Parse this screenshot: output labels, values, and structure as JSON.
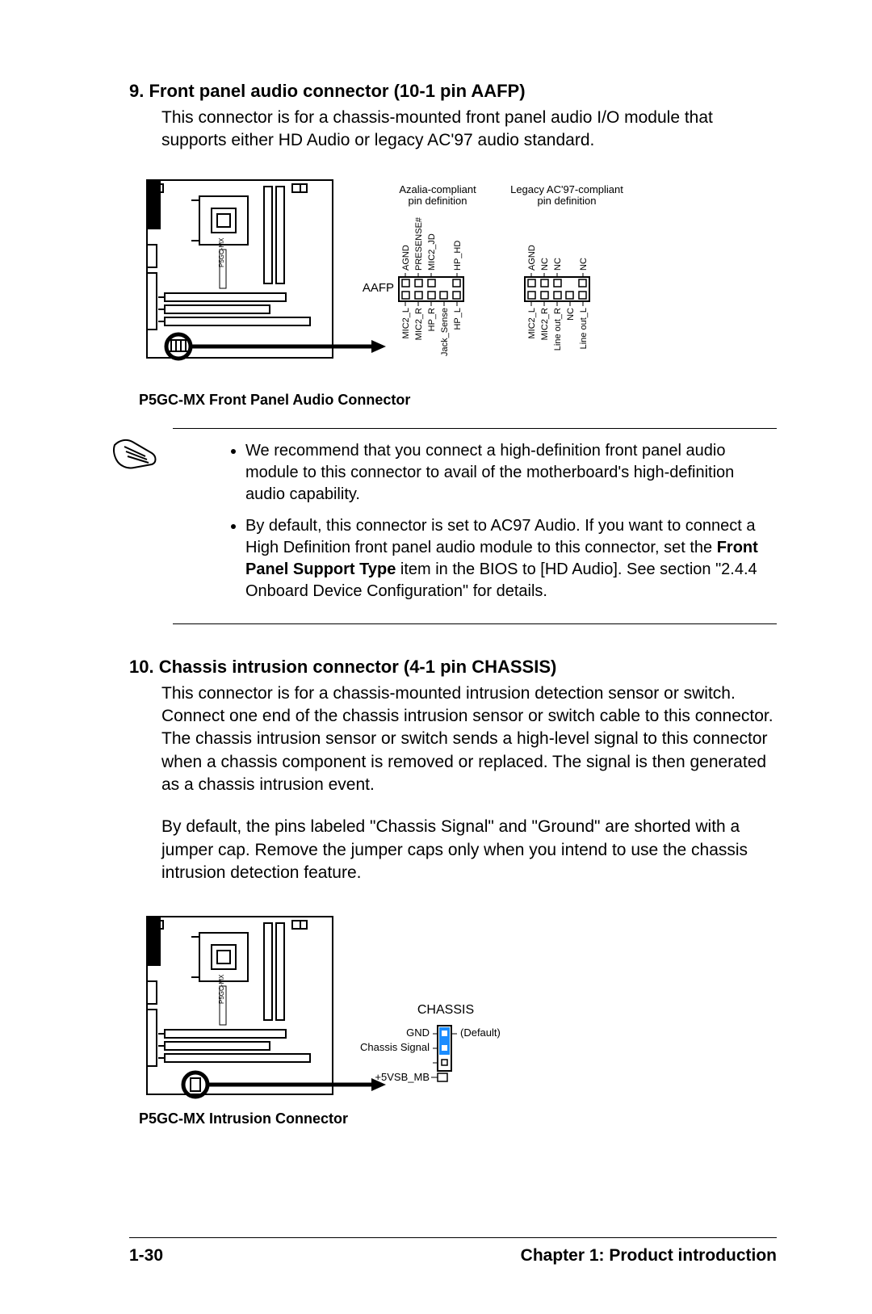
{
  "section9": {
    "heading": "9.  Front panel audio connector (10-1 pin AAFP)",
    "body": "This connector is for a chassis-mounted front panel audio I/O module that supports either HD Audio or legacy AC'97 audio standard.",
    "diagram": {
      "caption": "P5GC-MX Front Panel Audio Connector",
      "board_label": "P5GC-MX",
      "connector_label": "AAFP",
      "azalia_header": "Azalia-compliant\npin definition",
      "legacy_header": "Legacy AC'97-compliant\npin definition",
      "azalia_top": [
        "AGND",
        "PRESENSE#",
        "MIC2_JD",
        "HP_HD"
      ],
      "azalia_bottom": [
        "MIC2_L",
        "MIC2_R",
        "HP_R",
        "Jack_Sense",
        "HP_L"
      ],
      "legacy_top": [
        "AGND",
        "NC",
        "NC",
        "NC"
      ],
      "legacy_bottom": [
        "MIC2_L",
        "MIC2_R",
        "Line out_R",
        "NC",
        "Line out_L"
      ]
    },
    "notes": [
      "We recommend that you connect a high-definition front panel audio module to this connector to avail of the motherboard's high-definition audio capability.",
      "By default, this connector is set to AC97 Audio. If you want to connect a High Definition front panel audio module to this connector, set the |Front Panel Support Type| item in the BIOS to [HD Audio]. See section \"2.4.4 Onboard Device Configuration\" for details."
    ]
  },
  "section10": {
    "heading": "10. Chassis intrusion connector (4-1 pin CHASSIS)",
    "body1": "This connector is for a chassis-mounted intrusion detection sensor or switch. Connect one end of the chassis intrusion sensor or switch cable to this connector. The chassis intrusion sensor or switch sends a high-level signal to this connector when a chassis component is removed or replaced. The signal is then generated as a chassis intrusion event.",
    "body2": "By default, the pins labeled \"Chassis Signal\" and \"Ground\" are shorted with a jumper cap. Remove the jumper caps only when you intend to use the chassis intrusion detection feature.",
    "diagram": {
      "caption": "P5GC-MX Intrusion Connector",
      "board_label": "P5GC-MX",
      "connector_label": "CHASSIS",
      "labels": {
        "gnd": "GND",
        "signal": "Chassis Signal",
        "vsb": "+5VSB_MB",
        "default": "(Default)"
      },
      "jumper_color": "#1a8cff"
    }
  },
  "footer": {
    "page": "1-30",
    "chapter": "Chapter 1: Product introduction"
  }
}
